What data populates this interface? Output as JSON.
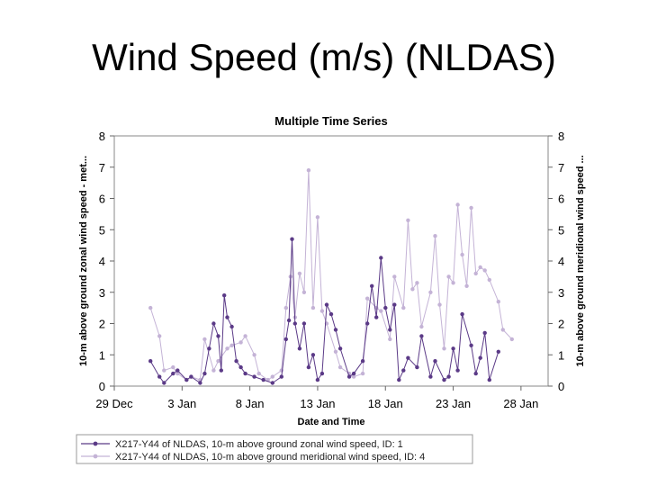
{
  "slide": {
    "title": "Wind Speed (m/s) (NLDAS)"
  },
  "chart_data": {
    "type": "line",
    "title": "Multiple Time Series",
    "xlabel": "Date and Time",
    "ylabel": "10-m above ground zonal wind speed - met...",
    "y2label": "10-m above ground meridional wind speed ...",
    "x_ticks": [
      "29 Dec",
      "3 Jan",
      "8 Jan",
      "13 Jan",
      "18 Jan",
      "23 Jan",
      "28 Jan"
    ],
    "xlim": [
      "2008-12-29",
      "2009-01-30"
    ],
    "ylim": [
      0,
      8
    ],
    "y_ticks": [
      0,
      1,
      2,
      3,
      4,
      5,
      6,
      7,
      8
    ],
    "grid": false,
    "legend_position": "bottom",
    "series": [
      {
        "name": "X217-Y44 of NLDAS, 10-m above ground zonal wind speed, ID: 1",
        "color": "#5b3a87",
        "axis": "left",
        "x": [
          "2009-01-01",
          "2009-01-01",
          "2009-01-02",
          "2009-01-02",
          "2009-01-03",
          "2009-01-03",
          "2009-01-04",
          "2009-01-04",
          "2009-01-05",
          "2009-01-05",
          "2009-01-05",
          "2009-01-06",
          "2009-01-06",
          "2009-01-06",
          "2009-01-06",
          "2009-01-07",
          "2009-01-07",
          "2009-01-07",
          "2009-01-08",
          "2009-01-08",
          "2009-01-09",
          "2009-01-10",
          "2009-01-10",
          "2009-01-11",
          "2009-01-11",
          "2009-01-11",
          "2009-01-11",
          "2009-01-12",
          "2009-01-12",
          "2009-01-12",
          "2009-01-13",
          "2009-01-13",
          "2009-01-13",
          "2009-01-14",
          "2009-01-14",
          "2009-01-14",
          "2009-01-15",
          "2009-01-15",
          "2009-01-16",
          "2009-01-16",
          "2009-01-17",
          "2009-01-17",
          "2009-01-17",
          "2009-01-18",
          "2009-01-18",
          "2009-01-18",
          "2009-01-19",
          "2009-01-19",
          "2009-01-19",
          "2009-01-20",
          "2009-01-20",
          "2009-01-21",
          "2009-01-21",
          "2009-01-22",
          "2009-01-22",
          "2009-01-23",
          "2009-01-23",
          "2009-01-23",
          "2009-01-24",
          "2009-01-24",
          "2009-01-25",
          "2009-01-25",
          "2009-01-25",
          "2009-01-26",
          "2009-01-26"
        ],
        "y": [
          0.8,
          0.3,
          0.1,
          0.4,
          0.5,
          0.2,
          0.3,
          0.1,
          0.4,
          1.2,
          2.0,
          1.6,
          0.5,
          2.9,
          2.2,
          1.9,
          0.8,
          0.6,
          0.4,
          0.3,
          0.2,
          0.1,
          0.3,
          1.5,
          2.1,
          4.7,
          2.0,
          1.2,
          2.0,
          0.6,
          1.0,
          0.2,
          0.4,
          2.6,
          2.3,
          1.8,
          1.2,
          0.3,
          0.4,
          0.8,
          2.0,
          3.2,
          2.2,
          4.1,
          2.5,
          1.8,
          2.6,
          0.2,
          0.5,
          0.9,
          0.6,
          1.6,
          0.3,
          0.8,
          0.2,
          0.3,
          1.2,
          0.5,
          2.3,
          1.3,
          0.4,
          0.9,
          1.7,
          0.2,
          1.1
        ]
      },
      {
        "name": "X217-Y44 of NLDAS, 10-m above ground meridional wind speed, ID: 4",
        "color": "#c4b3d6",
        "axis": "right",
        "x": [
          "2009-01-01",
          "2009-01-01",
          "2009-01-02",
          "2009-01-02",
          "2009-01-03",
          "2009-01-03",
          "2009-01-04",
          "2009-01-04",
          "2009-01-05",
          "2009-01-05",
          "2009-01-06",
          "2009-01-06",
          "2009-01-07",
          "2009-01-07",
          "2009-01-08",
          "2009-01-08",
          "2009-01-09",
          "2009-01-09",
          "2009-01-10",
          "2009-01-10",
          "2009-01-11",
          "2009-01-11",
          "2009-01-11",
          "2009-01-12",
          "2009-01-12",
          "2009-01-12",
          "2009-01-13",
          "2009-01-13",
          "2009-01-13",
          "2009-01-14",
          "2009-01-14",
          "2009-01-15",
          "2009-01-15",
          "2009-01-16",
          "2009-01-16",
          "2009-01-17",
          "2009-01-17",
          "2009-01-18",
          "2009-01-18",
          "2009-01-19",
          "2009-01-19",
          "2009-01-20",
          "2009-01-20",
          "2009-01-20",
          "2009-01-21",
          "2009-01-21",
          "2009-01-22",
          "2009-01-22",
          "2009-01-22",
          "2009-01-23",
          "2009-01-23",
          "2009-01-23",
          "2009-01-24",
          "2009-01-24",
          "2009-01-24",
          "2009-01-25",
          "2009-01-25",
          "2009-01-25",
          "2009-01-26",
          "2009-01-26",
          "2009-01-27",
          "2009-01-27"
        ],
        "y": [
          2.5,
          1.6,
          0.5,
          0.6,
          0.4,
          0.2,
          0.3,
          0.2,
          1.5,
          0.5,
          0.8,
          1.2,
          1.3,
          1.4,
          1.6,
          1.0,
          0.4,
          0.2,
          0.3,
          0.5,
          2.5,
          3.5,
          2.2,
          3.6,
          3.0,
          6.9,
          2.5,
          5.4,
          2.4,
          2.0,
          1.1,
          0.6,
          0.4,
          0.3,
          0.4,
          2.8,
          2.5,
          2.4,
          1.5,
          3.5,
          2.5,
          5.3,
          3.1,
          3.3,
          1.9,
          3.0,
          4.8,
          2.6,
          1.2,
          3.5,
          3.3,
          5.8,
          4.2,
          3.2,
          5.7,
          3.6,
          3.8,
          3.7,
          3.4,
          2.7,
          1.8,
          1.5
        ]
      }
    ]
  }
}
